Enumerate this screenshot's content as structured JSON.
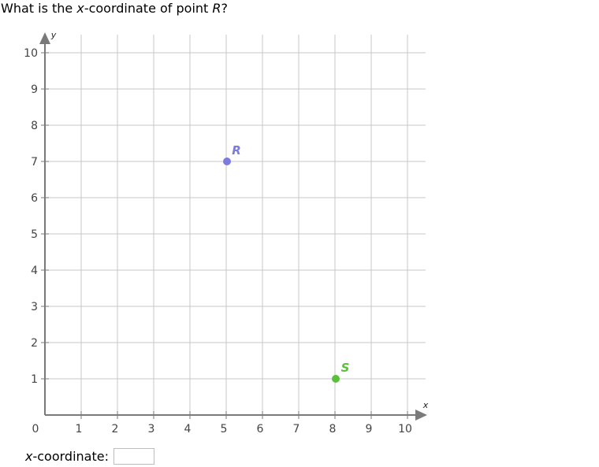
{
  "question": {
    "prefix": "What is the ",
    "italic_word": "x",
    "middle": "-coordinate of point ",
    "point_name": "R",
    "suffix": "?"
  },
  "answer": {
    "italic_word": "x",
    "label_rest": "-coordinate:",
    "value": ""
  },
  "chart_data": {
    "type": "scatter",
    "xlabel": "x",
    "ylabel": "y",
    "xlim": [
      0,
      10
    ],
    "ylim": [
      0,
      10
    ],
    "grid": true,
    "x_ticks": [
      1,
      2,
      3,
      4,
      5,
      6,
      7,
      8,
      9,
      10
    ],
    "y_ticks": [
      1,
      2,
      3,
      4,
      5,
      6,
      7,
      8,
      9,
      10
    ],
    "origin_label": "0",
    "points": [
      {
        "name": "R",
        "x": 5,
        "y": 7,
        "color": "#7b7be0"
      },
      {
        "name": "S",
        "x": 8,
        "y": 1,
        "color": "#5cbf3a"
      }
    ]
  }
}
